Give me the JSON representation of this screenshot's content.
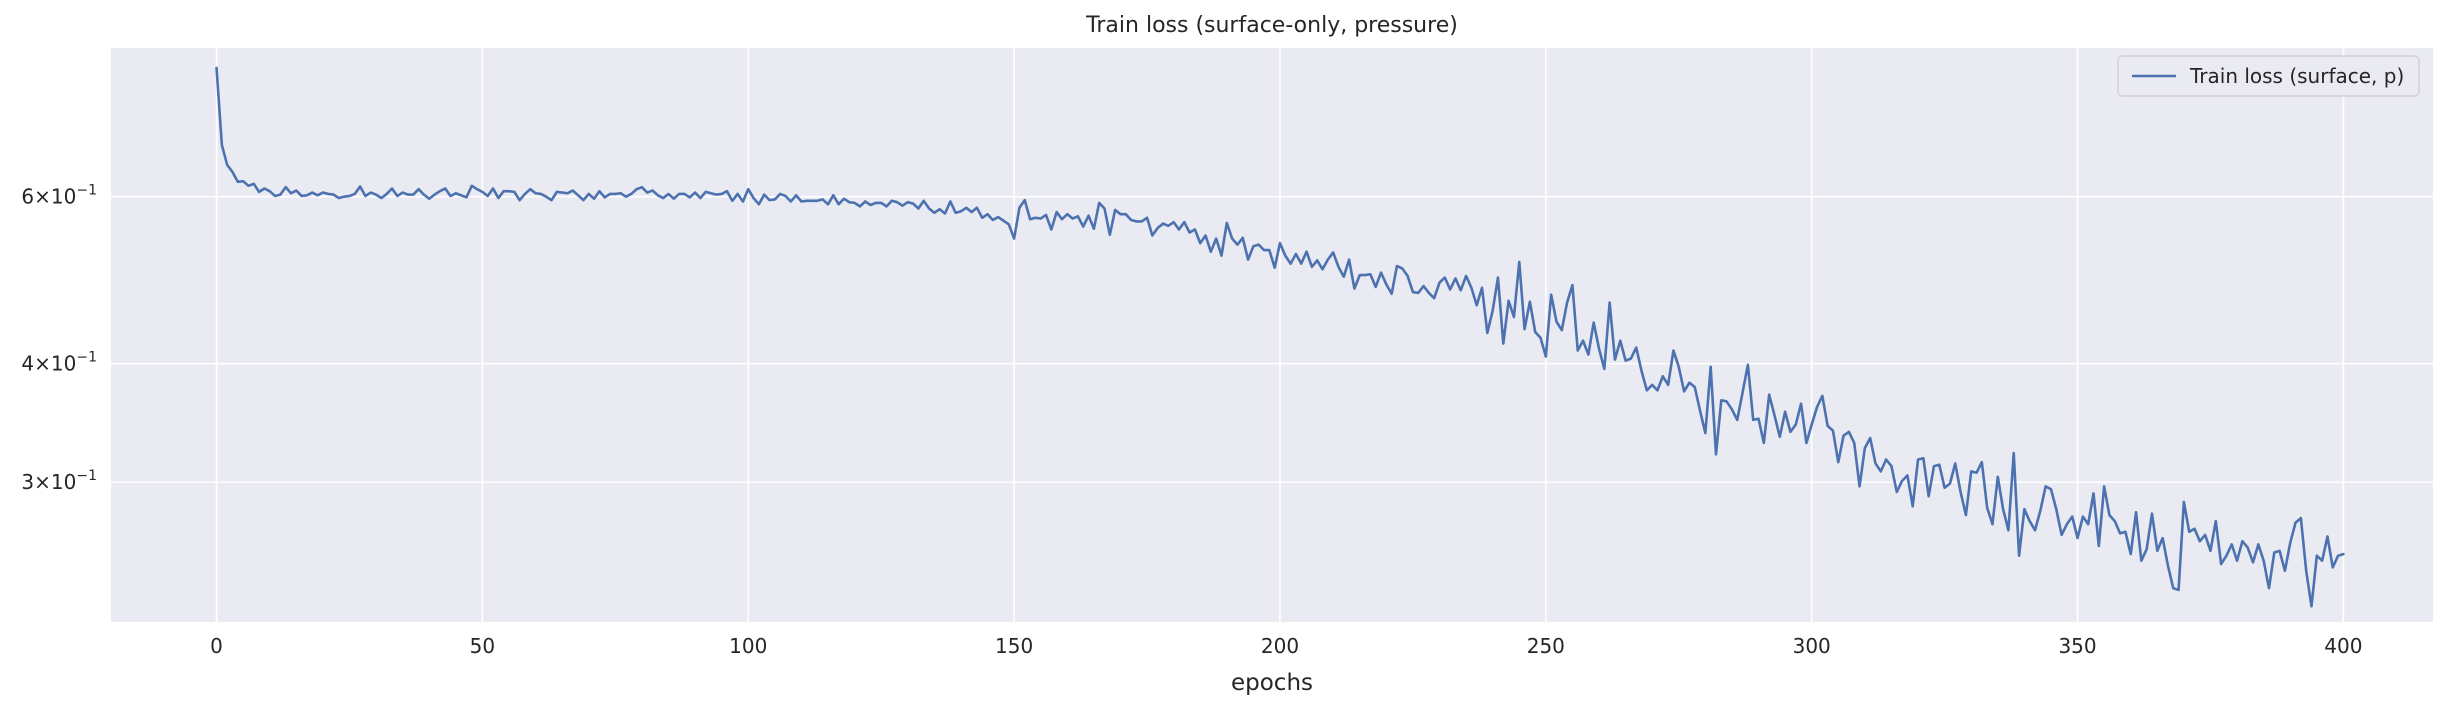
{
  "chart_data": {
    "type": "line",
    "title": "Train loss (surface-only, pressure)",
    "xlabel": "epochs",
    "ylabel": "",
    "xlim": [
      -19.85,
      416.85
    ],
    "ylim": [
      0.2137,
      0.8607
    ],
    "yscale": "log",
    "grid": true,
    "legend_position": "top-right",
    "x_ticks": [
      0,
      50,
      100,
      150,
      200,
      250,
      300,
      350,
      400
    ],
    "y_ticks": [
      {
        "value": 0.3,
        "mantissa": "3",
        "base": "10",
        "exponent": "−1"
      },
      {
        "value": 0.4,
        "mantissa": "4",
        "base": "10",
        "exponent": "−1"
      },
      {
        "value": 0.6,
        "mantissa": "6",
        "base": "10",
        "exponent": "−1"
      }
    ],
    "colors": {
      "background": "#eaeaf2",
      "grid": "#ffffff",
      "series": "#4c72b0"
    },
    "series": [
      {
        "name": "Train loss (surface, p)",
        "x_start": 0,
        "x_step": 1,
        "values": [
          0.82,
          0.68,
          0.648,
          0.637,
          0.622,
          0.623,
          0.616,
          0.619,
          0.607,
          0.612,
          0.608,
          0.601,
          0.603,
          0.614,
          0.605,
          0.609,
          0.601,
          0.602,
          0.606,
          0.602,
          0.606,
          0.604,
          0.603,
          0.598,
          0.6,
          0.601,
          0.604,
          0.615,
          0.601,
          0.606,
          0.603,
          0.598,
          0.604,
          0.612,
          0.601,
          0.606,
          0.603,
          0.603,
          0.611,
          0.603,
          0.597,
          0.603,
          0.608,
          0.612,
          0.601,
          0.605,
          0.602,
          0.599,
          0.616,
          0.611,
          0.607,
          0.601,
          0.612,
          0.598,
          0.608,
          0.608,
          0.607,
          0.595,
          0.604,
          0.611,
          0.605,
          0.604,
          0.6,
          0.595,
          0.607,
          0.606,
          0.605,
          0.609,
          0.602,
          0.595,
          0.604,
          0.597,
          0.608,
          0.599,
          0.604,
          0.604,
          0.605,
          0.6,
          0.604,
          0.611,
          0.614,
          0.606,
          0.609,
          0.602,
          0.598,
          0.604,
          0.597,
          0.604,
          0.604,
          0.599,
          0.606,
          0.598,
          0.607,
          0.605,
          0.603,
          0.604,
          0.608,
          0.594,
          0.604,
          0.593,
          0.611,
          0.598,
          0.589,
          0.603,
          0.595,
          0.596,
          0.604,
          0.601,
          0.593,
          0.602,
          0.593,
          0.594,
          0.594,
          0.594,
          0.596,
          0.589,
          0.602,
          0.589,
          0.597,
          0.592,
          0.591,
          0.586,
          0.593,
          0.588,
          0.591,
          0.591,
          0.586,
          0.594,
          0.592,
          0.587,
          0.592,
          0.59,
          0.583,
          0.594,
          0.583,
          0.577,
          0.582,
          0.576,
          0.593,
          0.577,
          0.579,
          0.584,
          0.578,
          0.584,
          0.57,
          0.575,
          0.567,
          0.571,
          0.566,
          0.561,
          0.542,
          0.584,
          0.595,
          0.568,
          0.57,
          0.569,
          0.574,
          0.554,
          0.578,
          0.568,
          0.575,
          0.569,
          0.572,
          0.558,
          0.573,
          0.555,
          0.591,
          0.583,
          0.547,
          0.581,
          0.575,
          0.575,
          0.567,
          0.565,
          0.565,
          0.57,
          0.546,
          0.556,
          0.562,
          0.559,
          0.564,
          0.554,
          0.564,
          0.55,
          0.554,
          0.536,
          0.546,
          0.525,
          0.542,
          0.52,
          0.563,
          0.542,
          0.534,
          0.543,
          0.515,
          0.532,
          0.534,
          0.527,
          0.527,
          0.505,
          0.536,
          0.52,
          0.51,
          0.522,
          0.51,
          0.525,
          0.506,
          0.514,
          0.503,
          0.515,
          0.524,
          0.506,
          0.494,
          0.515,
          0.48,
          0.496,
          0.496,
          0.497,
          0.482,
          0.499,
          0.485,
          0.474,
          0.507,
          0.504,
          0.495,
          0.476,
          0.475,
          0.483,
          0.475,
          0.469,
          0.487,
          0.493,
          0.479,
          0.492,
          0.478,
          0.495,
          0.481,
          0.461,
          0.481,
          0.431,
          0.455,
          0.493,
          0.42,
          0.466,
          0.448,
          0.512,
          0.435,
          0.465,
          0.432,
          0.426,
          0.407,
          0.473,
          0.443,
          0.434,
          0.464,
          0.484,
          0.413,
          0.423,
          0.409,
          0.442,
          0.415,
          0.395,
          0.464,
          0.404,
          0.423,
          0.403,
          0.405,
          0.416,
          0.393,
          0.375,
          0.38,
          0.375,
          0.388,
          0.38,
          0.413,
          0.397,
          0.374,
          0.382,
          0.378,
          0.357,
          0.338,
          0.397,
          0.321,
          0.366,
          0.365,
          0.358,
          0.349,
          0.373,
          0.399,
          0.349,
          0.35,
          0.33,
          0.371,
          0.353,
          0.335,
          0.356,
          0.339,
          0.345,
          0.363,
          0.33,
          0.345,
          0.36,
          0.37,
          0.344,
          0.34,
          0.315,
          0.336,
          0.339,
          0.33,
          0.297,
          0.326,
          0.334,
          0.314,
          0.308,
          0.317,
          0.312,
          0.293,
          0.301,
          0.305,
          0.283,
          0.317,
          0.318,
          0.29,
          0.312,
          0.313,
          0.296,
          0.299,
          0.314,
          0.293,
          0.277,
          0.308,
          0.307,
          0.315,
          0.282,
          0.271,
          0.304,
          0.281,
          0.267,
          0.322,
          0.251,
          0.281,
          0.273,
          0.267,
          0.28,
          0.297,
          0.295,
          0.281,
          0.264,
          0.271,
          0.276,
          0.262,
          0.276,
          0.271,
          0.292,
          0.257,
          0.297,
          0.277,
          0.273,
          0.265,
          0.266,
          0.252,
          0.279,
          0.248,
          0.255,
          0.278,
          0.254,
          0.262,
          0.245,
          0.232,
          0.231,
          0.286,
          0.266,
          0.268,
          0.26,
          0.264,
          0.254,
          0.273,
          0.246,
          0.251,
          0.258,
          0.248,
          0.26,
          0.256,
          0.247,
          0.258,
          0.248,
          0.232,
          0.253,
          0.254,
          0.242,
          0.259,
          0.272,
          0.275,
          0.242,
          0.222,
          0.251,
          0.248,
          0.263,
          0.244,
          0.251,
          0.252
        ]
      }
    ]
  }
}
